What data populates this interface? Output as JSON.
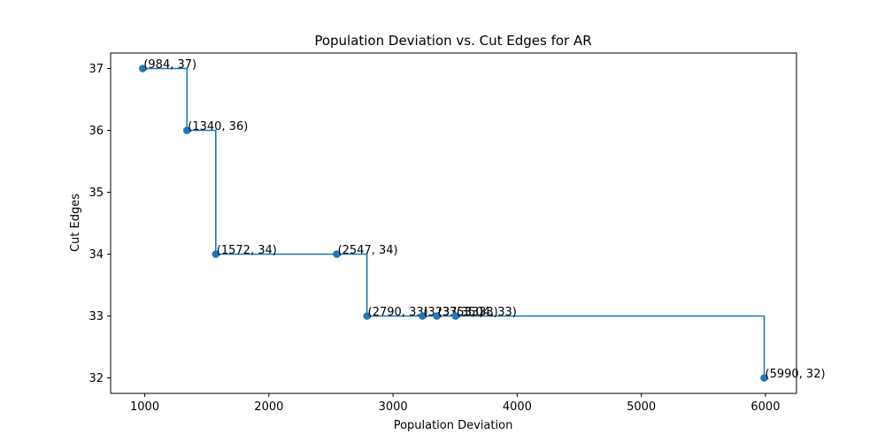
{
  "chart_data": {
    "type": "line",
    "title": "Population Deviation vs. Cut Edges for AR",
    "xlabel": "Population Deviation",
    "ylabel": "Cut Edges",
    "xlim": [
      725,
      6250
    ],
    "ylim": [
      31.75,
      37.25
    ],
    "xticks": [
      1000,
      2000,
      3000,
      4000,
      5000,
      6000
    ],
    "yticks": [
      32,
      33,
      34,
      35,
      36,
      37
    ],
    "step_where": "post",
    "grid": false,
    "series": [
      {
        "color": "#1f77b4",
        "points": [
          {
            "x": 984,
            "y": 37,
            "label": "(984, 37)"
          },
          {
            "x": 1340,
            "y": 36,
            "label": "(1340, 36)"
          },
          {
            "x": 1572,
            "y": 34,
            "label": "(1572, 34)"
          },
          {
            "x": 2547,
            "y": 34,
            "label": "(2547, 34)"
          },
          {
            "x": 2790,
            "y": 33,
            "label": "(2790, 33)"
          },
          {
            "x": 3237,
            "y": 33,
            "label": "(3237, 33)"
          },
          {
            "x": 3353,
            "y": 33,
            "label": "(3353, 33)"
          },
          {
            "x": 3504,
            "y": 33,
            "label": "(3504, 33)"
          },
          {
            "x": 5990,
            "y": 32,
            "label": "(5990, 32)"
          }
        ]
      }
    ]
  }
}
